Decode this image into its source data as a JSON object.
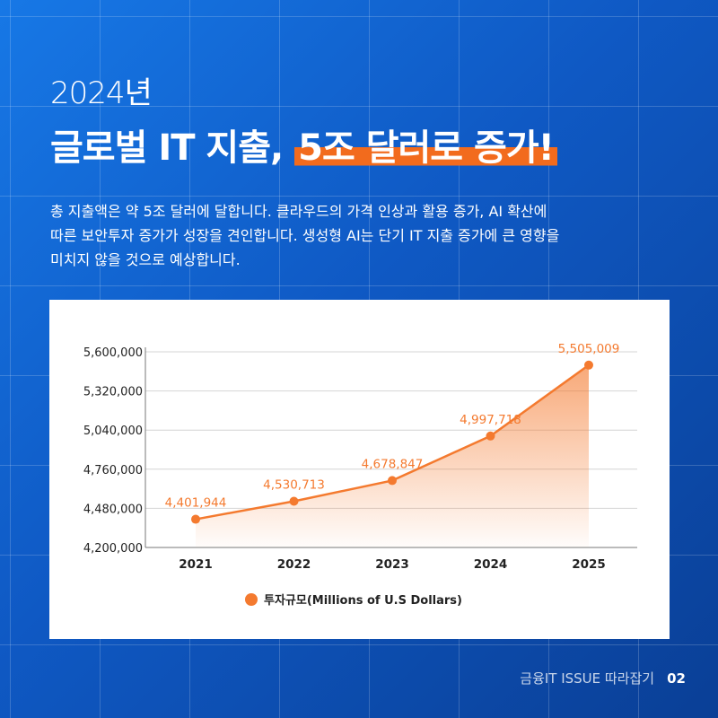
{
  "header": {
    "year": "2024년",
    "headline_prefix": "글로벌 IT 지출, ",
    "headline_highlight": "5조 달러로 증가!"
  },
  "description": [
    "총 지출액은 약 5조 달러에 달합니다. 클라우드의 가격 인상과 활용 증가, AI 확산에",
    "따른 보안투자 증가가 성장을 견인합니다. 생성형 AI는 단기 IT 지출 증가에 큰 영향을",
    "미치지 않을 것으로 예상합니다."
  ],
  "footer": {
    "label": "금융IT ISSUE 따라잡기",
    "page": "02"
  },
  "colors": {
    "accent": "#f26b1d",
    "series": "#f47a2f",
    "background_start": "#1778e6",
    "background_end": "#0a3f96"
  },
  "chart_data": {
    "type": "area",
    "categories": [
      "2021",
      "2022",
      "2023",
      "2024",
      "2025"
    ],
    "series": [
      {
        "name": "투자규모(Millions of U.S Dollars)",
        "values": [
          4401944,
          4530713,
          4678847,
          4997718,
          5505009
        ],
        "labels": [
          "4,401,944",
          "4,530,713",
          "4,678,847",
          "4,997,718",
          "5,505,009"
        ]
      }
    ],
    "y_ticks": [
      4200000,
      4480000,
      4760000,
      5040000,
      5320000,
      5600000
    ],
    "y_tick_labels": [
      "4,200,000",
      "4,480,000",
      "4,760,000",
      "5,040,000",
      "5,320,000",
      "5,600,000"
    ],
    "ylim": [
      4200000,
      5600000
    ],
    "grid": true,
    "legend_position": "bottom-center"
  }
}
